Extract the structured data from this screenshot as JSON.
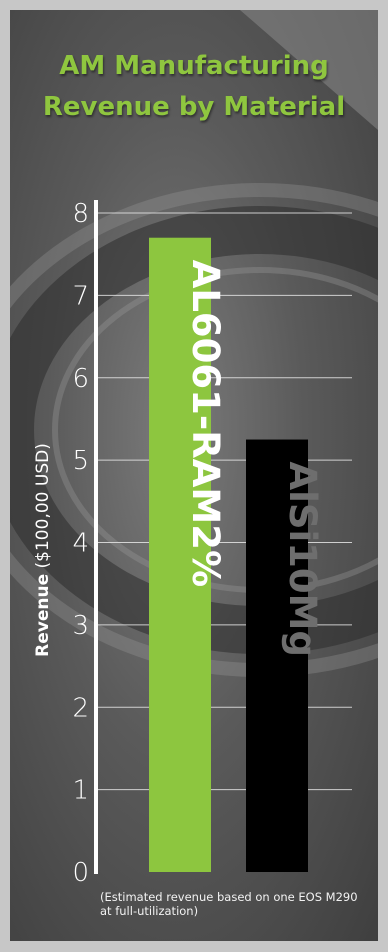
{
  "chart_data": {
    "type": "bar",
    "title": "AM Manufacturing Revenue by Material",
    "ylabel_bold": "Revenue",
    "ylabel_rest": " ($100,00 USD)",
    "categories": [
      "AL6061-RAM2%",
      "AlSi10Mg"
    ],
    "values": [
      7.7,
      5.25
    ],
    "ylim": [
      0,
      8
    ],
    "yticks": [
      "0",
      "1",
      "2",
      "3",
      "4",
      "5",
      "6",
      "7",
      "8"
    ],
    "grid": true,
    "colors": {
      "AL6061-RAM2%": "#8dc63f",
      "AlSi10Mg": "#000000"
    },
    "label_colors": {
      "AL6061-RAM2%": "#ffffff",
      "AlSi10Mg": "#6e6e6e"
    },
    "footnote": "(Estimated revenue based on one EOS M290 at full-utilization)"
  }
}
